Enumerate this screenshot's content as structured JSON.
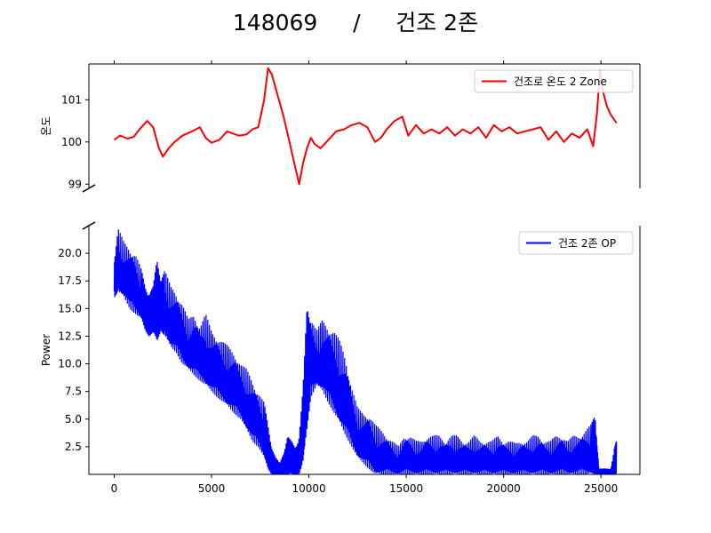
{
  "title": "148069     /     건조 2존",
  "chart_data": [
    {
      "type": "line",
      "panel": "top",
      "ylabel": "온도",
      "xlim": [
        -1300,
        27000
      ],
      "ylim": [
        98.9,
        101.85
      ],
      "yticks": [
        99,
        100,
        101
      ],
      "ytick_labels": [
        "99",
        "100",
        "101"
      ],
      "show_x_tick_labels": false,
      "legend": "top-right",
      "series": [
        {
          "name": "건조로 온도 2 Zone",
          "color": "#ff0000",
          "x": [
            0,
            300,
            700,
            1000,
            1300,
            1700,
            2000,
            2300,
            2500,
            2800,
            3100,
            3500,
            4000,
            4400,
            4700,
            5000,
            5400,
            5800,
            6100,
            6400,
            6800,
            7100,
            7400,
            7700,
            7900,
            8100,
            8250,
            8400,
            8700,
            9000,
            9300,
            9500,
            9700,
            9900,
            10100,
            10300,
            10600,
            11000,
            11400,
            11800,
            12200,
            12600,
            13000,
            13400,
            13700,
            14000,
            14400,
            14800,
            15100,
            15500,
            15900,
            16300,
            16700,
            17100,
            17500,
            17900,
            18300,
            18700,
            19100,
            19500,
            19900,
            20300,
            20700,
            21100,
            21500,
            21900,
            22300,
            22700,
            23100,
            23500,
            23900,
            24300,
            24600,
            24800,
            24950,
            25100,
            25300,
            25500,
            25800
          ],
          "y": [
            100.05,
            100.15,
            100.08,
            100.12,
            100.3,
            100.5,
            100.35,
            99.85,
            99.65,
            99.85,
            100.0,
            100.15,
            100.25,
            100.35,
            100.1,
            99.98,
            100.05,
            100.25,
            100.2,
            100.15,
            100.18,
            100.3,
            100.35,
            101.0,
            101.75,
            101.6,
            101.35,
            101.1,
            100.6,
            100.0,
            99.4,
            99.0,
            99.5,
            99.85,
            100.1,
            99.95,
            99.85,
            100.05,
            100.25,
            100.3,
            100.4,
            100.45,
            100.35,
            100.0,
            100.1,
            100.3,
            100.5,
            100.6,
            100.15,
            100.4,
            100.2,
            100.3,
            100.2,
            100.35,
            100.15,
            100.3,
            100.2,
            100.35,
            100.1,
            100.4,
            100.25,
            100.35,
            100.2,
            100.25,
            100.3,
            100.35,
            100.05,
            100.25,
            100.0,
            100.2,
            100.1,
            100.3,
            99.9,
            100.7,
            101.7,
            101.2,
            100.85,
            100.65,
            100.45
          ]
        }
      ]
    },
    {
      "type": "line",
      "panel": "bottom",
      "ylabel": "Power",
      "xlim": [
        -1300,
        27000
      ],
      "ylim": [
        0,
        22.5
      ],
      "yticks": [
        2.5,
        5,
        7.5,
        10,
        12.5,
        15,
        17.5,
        20
      ],
      "ytick_labels": [
        "2.5",
        "5.0",
        "7.5",
        "10.0",
        "12.5",
        "15.0",
        "17.5",
        "20.0"
      ],
      "xticks": [
        0,
        5000,
        10000,
        15000,
        20000,
        25000
      ],
      "xtick_labels": [
        "0",
        "5000",
        "10000",
        "15000",
        "20000",
        "25000"
      ],
      "legend": "top-right",
      "series": [
        {
          "name": "건조 2존 OP",
          "color": "#0000ff",
          "x": [
            0,
            200,
            500,
            800,
            1100,
            1400,
            1600,
            1800,
            2000,
            2200,
            2400,
            2600,
            2900,
            3200,
            3500,
            3800,
            4100,
            4400,
            4700,
            5000,
            5300,
            5600,
            5900,
            6200,
            6500,
            6800,
            7100,
            7400,
            7700,
            7900,
            8100,
            8300,
            8500,
            8700,
            8900,
            9100,
            9300,
            9500,
            9700,
            9900,
            10100,
            10400,
            10700,
            11000,
            11300,
            11600,
            11900,
            12200,
            12500,
            12800,
            13100,
            13400,
            13700,
            14000,
            14300,
            14600,
            14900,
            15200,
            15500,
            15800,
            16100,
            16400,
            16700,
            17000,
            17300,
            17600,
            17900,
            18200,
            18500,
            18800,
            19100,
            19400,
            19700,
            20000,
            20300,
            20600,
            20900,
            21200,
            21500,
            21800,
            22100,
            22400,
            22700,
            23000,
            23300,
            23600,
            23900,
            24200,
            24500,
            24700,
            24900,
            25100,
            25300,
            25500,
            25700,
            25800
          ],
          "lower": [
            16.0,
            16.5,
            16.0,
            15.0,
            14.5,
            14.0,
            13.0,
            12.5,
            12.8,
            12.0,
            13.0,
            12.5,
            11.5,
            11.0,
            10.0,
            9.5,
            9.0,
            8.5,
            8.0,
            7.5,
            7.0,
            6.5,
            6.0,
            5.5,
            5.0,
            4.0,
            3.0,
            2.5,
            1.5,
            0.5,
            0.0,
            0.0,
            0.0,
            0.0,
            0.0,
            0.0,
            0.0,
            0.0,
            1.0,
            4.0,
            7.0,
            8.0,
            7.5,
            6.5,
            5.5,
            4.5,
            3.5,
            2.5,
            1.5,
            1.0,
            0.5,
            0.0,
            0.0,
            0.0,
            0.0,
            0.0,
            0.0,
            0.0,
            0.0,
            0.0,
            0.0,
            0.0,
            0.0,
            0.0,
            0.0,
            0.0,
            0.0,
            0.0,
            0.0,
            0.0,
            0.0,
            0.0,
            0.0,
            0.0,
            0.0,
            0.0,
            0.0,
            0.0,
            0.0,
            0.0,
            0.0,
            0.0,
            0.0,
            0.0,
            0.0,
            0.0,
            0.0,
            0.0,
            0.0,
            0.0,
            0.0,
            0.0,
            0.0,
            0.0,
            0.0,
            0.0
          ],
          "upper": [
            19.5,
            22.3,
            21.0,
            20.5,
            20.0,
            18.5,
            17.0,
            16.5,
            17.0,
            19.5,
            18.0,
            18.5,
            17.0,
            16.5,
            15.5,
            14.0,
            14.5,
            13.5,
            14.5,
            13.0,
            12.5,
            12.0,
            11.5,
            11.0,
            10.0,
            9.5,
            8.5,
            7.5,
            6.5,
            4.5,
            2.5,
            1.5,
            1.0,
            2.0,
            3.5,
            3.0,
            2.5,
            3.5,
            8.0,
            15.5,
            14.5,
            13.0,
            14.0,
            13.5,
            13.0,
            12.0,
            10.5,
            8.0,
            6.0,
            5.5,
            5.5,
            4.5,
            4.0,
            3.5,
            3.0,
            2.5,
            3.5,
            3.5,
            3.0,
            3.0,
            3.5,
            3.5,
            3.5,
            3.0,
            3.5,
            3.5,
            3.0,
            3.0,
            3.5,
            3.0,
            3.0,
            3.0,
            3.5,
            3.0,
            3.0,
            2.8,
            3.0,
            3.0,
            3.5,
            3.5,
            3.0,
            3.0,
            3.5,
            3.5,
            3.0,
            3.5,
            3.5,
            4.0,
            4.5,
            5.5,
            0.5,
            0.5,
            0.5,
            0.5,
            2.5,
            3.0
          ]
        }
      ]
    }
  ]
}
